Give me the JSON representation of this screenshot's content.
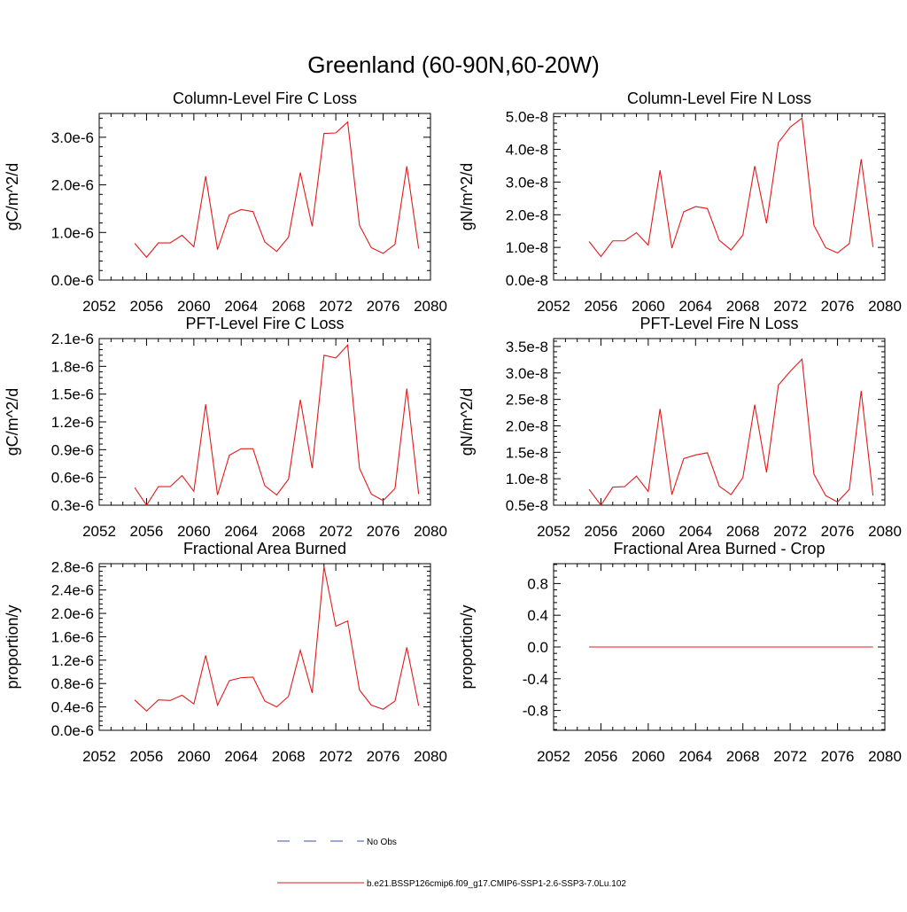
{
  "page_title": "Greenland (60-90N,60-20W)",
  "legend": [
    {
      "label": "No Obs",
      "color": "#3b4fa8",
      "dashed": true
    },
    {
      "label": "b.e21.BSSP126cmip6.f09_g17.CMIP6-SSP1-2.6-SSP3-7.0Lu.102",
      "color": "#e31a1c",
      "dashed": false
    }
  ],
  "chart_data": [
    {
      "type": "line",
      "title": "Column-Level Fire C Loss",
      "ylabel": "gC/m^2/d",
      "xlim": [
        2052,
        2080
      ],
      "xticks": [
        "2052",
        "2056",
        "2060",
        "2064",
        "2068",
        "2072",
        "2076",
        "2080"
      ],
      "ylim": [
        0,
        3.5e-06
      ],
      "yticks": [
        {
          "v": 0,
          "label": "0.0e-6"
        },
        {
          "v": 1e-06,
          "label": "1.0e-6"
        },
        {
          "v": 2e-06,
          "label": "2.0e-6"
        },
        {
          "v": 3e-06,
          "label": "3.0e-6"
        }
      ],
      "x": [
        2055,
        2056,
        2057,
        2058,
        2059,
        2060,
        2061,
        2062,
        2063,
        2064,
        2065,
        2066,
        2067,
        2068,
        2069,
        2070,
        2071,
        2072,
        2073,
        2074,
        2075,
        2076,
        2077,
        2078,
        2079
      ],
      "series": [
        {
          "color": "#e31a1c",
          "values": [
            7.7e-07,
            4.8e-07,
            7.8e-07,
            7.8e-07,
            9.4e-07,
            7e-07,
            2.18e-06,
            6.4e-07,
            1.37e-06,
            1.48e-06,
            1.44e-06,
            8e-07,
            6e-07,
            9e-07,
            2.26e-06,
            1.13e-06,
            3.08e-06,
            3.09e-06,
            3.32e-06,
            1.15e-06,
            6.8e-07,
            5.6e-07,
            7.5e-07,
            2.39e-06,
            6.6e-07
          ]
        }
      ]
    },
    {
      "type": "line",
      "title": "Column-Level Fire N Loss",
      "ylabel": "gN/m^2/d",
      "xlim": [
        2052,
        2080
      ],
      "xticks": [
        "2052",
        "2056",
        "2060",
        "2064",
        "2068",
        "2072",
        "2076",
        "2080"
      ],
      "ylim": [
        0,
        5.1e-08
      ],
      "yticks": [
        {
          "v": 0,
          "label": "0.0e-8"
        },
        {
          "v": 1e-08,
          "label": "1.0e-8"
        },
        {
          "v": 2e-08,
          "label": "2.0e-8"
        },
        {
          "v": 3e-08,
          "label": "3.0e-8"
        },
        {
          "v": 4e-08,
          "label": "4.0e-8"
        },
        {
          "v": 5e-08,
          "label": "5.0e-8"
        }
      ],
      "x": [
        2055,
        2056,
        2057,
        2058,
        2059,
        2060,
        2061,
        2062,
        2063,
        2064,
        2065,
        2066,
        2067,
        2068,
        2069,
        2070,
        2071,
        2072,
        2073,
        2074,
        2075,
        2076,
        2077,
        2078,
        2079
      ],
      "series": [
        {
          "color": "#e31a1c",
          "values": [
            1.18e-08,
            7.2e-09,
            1.2e-08,
            1.2e-08,
            1.45e-08,
            1.07e-08,
            3.36e-08,
            9.8e-09,
            2.09e-08,
            2.25e-08,
            2.19e-08,
            1.22e-08,
            9.2e-09,
            1.38e-08,
            3.49e-08,
            1.74e-08,
            4.21e-08,
            4.68e-08,
            4.96e-08,
            1.68e-08,
            9.9e-09,
            8.3e-09,
            1.12e-08,
            3.7e-08,
            1.01e-08
          ]
        }
      ]
    },
    {
      "type": "line",
      "title": "PFT-Level Fire C Loss",
      "ylabel": "gC/m^2/d",
      "xlim": [
        2052,
        2080
      ],
      "xticks": [
        "2052",
        "2056",
        "2060",
        "2064",
        "2068",
        "2072",
        "2076",
        "2080"
      ],
      "ylim": [
        3e-07,
        2.1e-06
      ],
      "yticks": [
        {
          "v": 3e-07,
          "label": "0.3e-6"
        },
        {
          "v": 6e-07,
          "label": "0.6e-6"
        },
        {
          "v": 9e-07,
          "label": "0.9e-6"
        },
        {
          "v": 1.2e-06,
          "label": "1.2e-6"
        },
        {
          "v": 1.5e-06,
          "label": "1.5e-6"
        },
        {
          "v": 1.8e-06,
          "label": "1.8e-6"
        },
        {
          "v": 2.1e-06,
          "label": "2.1e-6"
        }
      ],
      "x": [
        2055,
        2056,
        2057,
        2058,
        2059,
        2060,
        2061,
        2062,
        2063,
        2064,
        2065,
        2066,
        2067,
        2068,
        2069,
        2070,
        2071,
        2072,
        2073,
        2074,
        2075,
        2076,
        2077,
        2078,
        2079
      ],
      "series": [
        {
          "color": "#e31a1c",
          "values": [
            4.9e-07,
            3e-07,
            5e-07,
            5e-07,
            6.2e-07,
            4.5e-07,
            1.39e-06,
            4.1e-07,
            8.4e-07,
            9.1e-07,
            9.1e-07,
            5.1e-07,
            4.1e-07,
            5.8e-07,
            1.44e-06,
            7e-07,
            1.92e-06,
            1.89e-06,
            2.03e-06,
            7e-07,
            4.2e-07,
            3.5e-07,
            4.8e-07,
            1.56e-06,
            4.2e-07
          ]
        }
      ]
    },
    {
      "type": "line",
      "title": "PFT-Level Fire N Loss",
      "ylabel": "gN/m^2/d",
      "xlim": [
        2052,
        2080
      ],
      "xticks": [
        "2052",
        "2056",
        "2060",
        "2064",
        "2068",
        "2072",
        "2076",
        "2080"
      ],
      "ylim": [
        5e-09,
        3.65e-08
      ],
      "yticks": [
        {
          "v": 5e-09,
          "label": "0.5e-8"
        },
        {
          "v": 1e-08,
          "label": "1.0e-8"
        },
        {
          "v": 1.5e-08,
          "label": "1.5e-8"
        },
        {
          "v": 2e-08,
          "label": "2.0e-8"
        },
        {
          "v": 2.5e-08,
          "label": "2.5e-8"
        },
        {
          "v": 3e-08,
          "label": "3.0e-8"
        },
        {
          "v": 3.5e-08,
          "label": "3.5e-8"
        }
      ],
      "x": [
        2055,
        2056,
        2057,
        2058,
        2059,
        2060,
        2061,
        2062,
        2063,
        2064,
        2065,
        2066,
        2067,
        2068,
        2069,
        2070,
        2071,
        2072,
        2073,
        2074,
        2075,
        2076,
        2077,
        2078,
        2079
      ],
      "series": [
        {
          "color": "#e31a1c",
          "values": [
            8e-09,
            5e-09,
            8.4e-09,
            8.5e-09,
            1.05e-08,
            7.6e-09,
            2.32e-08,
            7e-09,
            1.38e-08,
            1.45e-08,
            1.49e-08,
            8.6e-09,
            7e-09,
            1.02e-08,
            2.4e-08,
            1.12e-08,
            2.77e-08,
            3.03e-08,
            3.26e-08,
            1.09e-08,
            6.8e-09,
            5.6e-09,
            8e-09,
            2.66e-08,
            6.8e-09
          ]
        }
      ]
    },
    {
      "type": "line",
      "title": "Fractional Area Burned",
      "ylabel": "proportion/y",
      "xlim": [
        2052,
        2080
      ],
      "xticks": [
        "2052",
        "2056",
        "2060",
        "2064",
        "2068",
        "2072",
        "2076",
        "2080"
      ],
      "ylim": [
        0,
        2.85e-06
      ],
      "yticks": [
        {
          "v": 0,
          "label": "0.0e-6"
        },
        {
          "v": 4e-07,
          "label": "0.4e-6"
        },
        {
          "v": 8e-07,
          "label": "0.8e-6"
        },
        {
          "v": 1.2e-06,
          "label": "1.2e-6"
        },
        {
          "v": 1.6e-06,
          "label": "1.6e-6"
        },
        {
          "v": 2e-06,
          "label": "2.0e-6"
        },
        {
          "v": 2.4e-06,
          "label": "2.4e-6"
        },
        {
          "v": 2.8e-06,
          "label": "2.8e-6"
        }
      ],
      "x": [
        2055,
        2056,
        2057,
        2058,
        2059,
        2060,
        2061,
        2062,
        2063,
        2064,
        2065,
        2066,
        2067,
        2068,
        2069,
        2070,
        2071,
        2072,
        2073,
        2074,
        2075,
        2076,
        2077,
        2078,
        2079
      ],
      "series": [
        {
          "color": "#e31a1c",
          "values": [
            5.2e-07,
            3.3e-07,
            5.2e-07,
            5.1e-07,
            6e-07,
            4.5e-07,
            1.28e-06,
            4.3e-07,
            8.5e-07,
            9e-07,
            9.1e-07,
            5e-07,
            4e-07,
            5.8e-07,
            1.37e-06,
            6.4e-07,
            2.8e-06,
            1.78e-06,
            1.87e-06,
            6.9e-07,
            4.3e-07,
            3.6e-07,
            5e-07,
            1.42e-06,
            4.2e-07
          ]
        }
      ]
    },
    {
      "type": "line",
      "title": "Fractional Area Burned - Crop",
      "ylabel": "proportion/y",
      "xlim": [
        2052,
        2080
      ],
      "xticks": [
        "2052",
        "2056",
        "2060",
        "2064",
        "2068",
        "2072",
        "2076",
        "2080"
      ],
      "ylim": [
        -1.05,
        1.05
      ],
      "yticks": [
        {
          "v": -0.8,
          "label": "-0.8"
        },
        {
          "v": -0.4,
          "label": "-0.4"
        },
        {
          "v": 0,
          "label": "0.0"
        },
        {
          "v": 0.4,
          "label": "0.4"
        },
        {
          "v": 0.8,
          "label": "0.8"
        }
      ],
      "x": [
        2055,
        2056,
        2057,
        2058,
        2059,
        2060,
        2061,
        2062,
        2063,
        2064,
        2065,
        2066,
        2067,
        2068,
        2069,
        2070,
        2071,
        2072,
        2073,
        2074,
        2075,
        2076,
        2077,
        2078,
        2079
      ],
      "series": [
        {
          "color": "#e31a1c",
          "values": [
            0,
            0,
            0,
            0,
            0,
            0,
            0,
            0,
            0,
            0,
            0,
            0,
            0,
            0,
            0,
            0,
            0,
            0,
            0,
            0,
            0,
            0,
            0,
            0,
            0
          ]
        }
      ]
    }
  ]
}
